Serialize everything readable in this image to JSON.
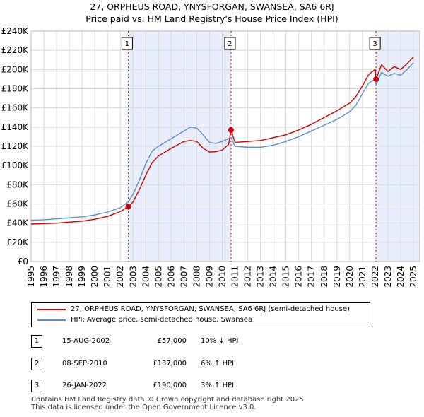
{
  "chart_data": {
    "type": "line",
    "title": "27, ORPHEUS ROAD, YNYSFORGAN, SWANSEA, SA6 6RJ",
    "subtitle": "Price paid vs. HM Land Registry's House Price Index (HPI)",
    "xlabel": "",
    "ylabel": "",
    "xlim": [
      1995,
      2025.5
    ],
    "ylim": [
      0,
      240000
    ],
    "x_ticks": [
      "1995",
      "1996",
      "1997",
      "1998",
      "1999",
      "2000",
      "2001",
      "2002",
      "2003",
      "2004",
      "2005",
      "2006",
      "2007",
      "2008",
      "2009",
      "2010",
      "2011",
      "2012",
      "2013",
      "2014",
      "2015",
      "2016",
      "2017",
      "2018",
      "2019",
      "2020",
      "2021",
      "2022",
      "2023",
      "2024",
      "2025"
    ],
    "y_ticks": [
      "£0",
      "£20K",
      "£40K",
      "£60K",
      "£80K",
      "£100K",
      "£120K",
      "£140K",
      "£160K",
      "£180K",
      "£200K",
      "£220K",
      "£240K"
    ],
    "y_tick_values": [
      0,
      20000,
      40000,
      60000,
      80000,
      100000,
      120000,
      140000,
      160000,
      180000,
      200000,
      220000,
      240000
    ],
    "grid": true,
    "series": [
      {
        "name": "27, ORPHEUS ROAD, YNYSFORGAN, SWANSEA, SA6 6RJ (semi-detached house)",
        "color": "#cc0000",
        "x": [
          1995,
          1996,
          1997,
          1998,
          1999,
          2000,
          2001,
          2002,
          2002.62,
          2003,
          2003.5,
          2004,
          2004.5,
          2005,
          2006,
          2007,
          2007.5,
          2008,
          2008.5,
          2009,
          2009.5,
          2010,
          2010.5,
          2010.69,
          2011,
          2012,
          2013,
          2014,
          2015,
          2016,
          2017,
          2018,
          2019,
          2020,
          2020.5,
          2021,
          2021.5,
          2022,
          2022.07,
          2022.5,
          2023,
          2023.5,
          2024,
          2024.5,
          2025
        ],
        "y": [
          39000,
          39500,
          40000,
          41000,
          42000,
          44000,
          47000,
          52000,
          57000,
          62000,
          75000,
          90000,
          103000,
          110000,
          118000,
          125000,
          126000,
          125000,
          118000,
          114000,
          114500,
          116000,
          122000,
          137000,
          124000,
          125000,
          126000,
          129000,
          132000,
          137000,
          143000,
          150000,
          157000,
          165000,
          172000,
          183000,
          195000,
          200000,
          190000,
          205000,
          198000,
          203000,
          200000,
          206000,
          213000
        ]
      },
      {
        "name": "HPI: Average price, semi-detached house, Swansea",
        "color": "#5b8fd0",
        "x": [
          1995,
          1996,
          1997,
          1998,
          1999,
          2000,
          2001,
          2002,
          2002.62,
          2003,
          2003.5,
          2004,
          2004.5,
          2005,
          2006,
          2007,
          2007.5,
          2008,
          2008.5,
          2009,
          2009.5,
          2010,
          2010.5,
          2010.69,
          2011,
          2012,
          2013,
          2014,
          2015,
          2016,
          2017,
          2018,
          2019,
          2020,
          2020.5,
          2021,
          2021.5,
          2022,
          2022.07,
          2022.5,
          2023,
          2023.5,
          2024,
          2024.5,
          2025
        ],
        "y": [
          43000,
          43500,
          44500,
          45500,
          46500,
          48500,
          51500,
          56000,
          62000,
          70000,
          85000,
          102000,
          115000,
          120000,
          128000,
          136000,
          140000,
          139000,
          132000,
          124000,
          123000,
          125000,
          128000,
          129000,
          120000,
          119000,
          119000,
          121000,
          125000,
          130000,
          136000,
          142000,
          148000,
          156000,
          163000,
          175000,
          186000,
          190000,
          184000,
          197000,
          193000,
          196000,
          194000,
          200000,
          207000
        ]
      }
    ],
    "sales": [
      {
        "label": "1",
        "x": 2002.62,
        "y": 57000
      },
      {
        "label": "2",
        "x": 2010.69,
        "y": 137000
      },
      {
        "label": "3",
        "x": 2022.07,
        "y": 190000
      }
    ]
  },
  "legend": {
    "property": "27, ORPHEUS ROAD, YNYSFORGAN, SWANSEA, SA6 6RJ (semi-detached house)",
    "hpi": "HPI: Average price, semi-detached house, Swansea"
  },
  "sales_table": [
    {
      "num": "1",
      "date": "15-AUG-2002",
      "price": "£57,000",
      "hpi": "10% ↓ HPI"
    },
    {
      "num": "2",
      "date": "08-SEP-2010",
      "price": "£137,000",
      "hpi": "6% ↑ HPI"
    },
    {
      "num": "3",
      "date": "26-JAN-2022",
      "price": "£190,000",
      "hpi": "3% ↑ HPI"
    }
  ],
  "footer": {
    "line1": "Contains HM Land Registry data © Crown copyright and database right 2025.",
    "line2": "This data is licensed under the Open Government Licence v3.0."
  }
}
